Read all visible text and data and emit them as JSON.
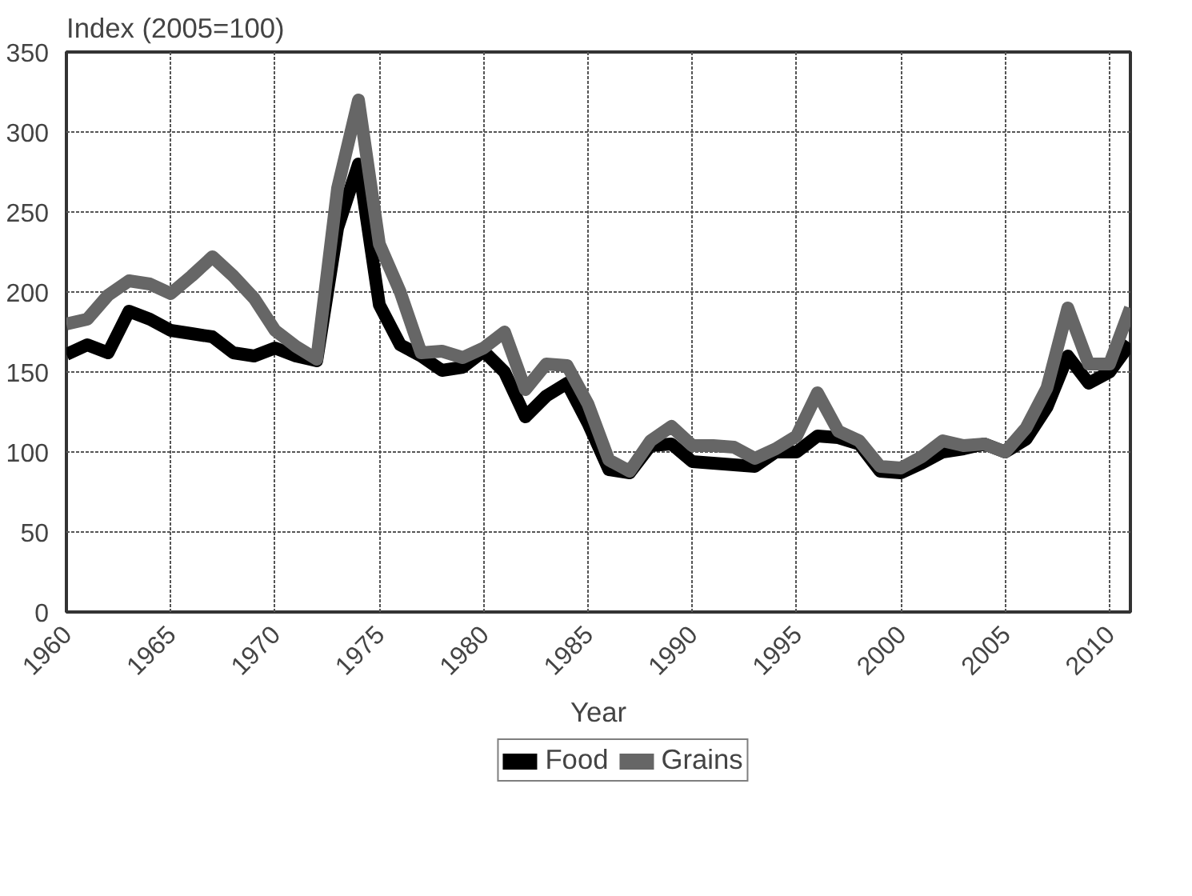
{
  "chart_data": {
    "type": "line",
    "xlabel": "Year",
    "ylabel": "Index (2005=100)",
    "x": [
      1960,
      1961,
      1962,
      1963,
      1964,
      1965,
      1966,
      1967,
      1968,
      1969,
      1970,
      1971,
      1972,
      1973,
      1974,
      1975,
      1976,
      1977,
      1978,
      1979,
      1980,
      1981,
      1982,
      1983,
      1984,
      1985,
      1986,
      1987,
      1988,
      1989,
      1990,
      1991,
      1992,
      1993,
      1994,
      1995,
      1996,
      1997,
      1998,
      1999,
      2000,
      2001,
      2002,
      2003,
      2004,
      2005,
      2006,
      2007,
      2008,
      2009,
      2010,
      2011
    ],
    "series": [
      {
        "name": "Food",
        "color": "#000000",
        "values": [
          161,
          167,
          162,
          188,
          183,
          176,
          174,
          172,
          162,
          160,
          165,
          160,
          157,
          240,
          280,
          192,
          167,
          160,
          151,
          153,
          163,
          150,
          122,
          135,
          143,
          118,
          89,
          87,
          104,
          105,
          94,
          93,
          92,
          91,
          100,
          100,
          110,
          109,
          105,
          88,
          87,
          93,
          100,
          102,
          105,
          100,
          108,
          128,
          160,
          143,
          150,
          168
        ]
      },
      {
        "name": "Grains",
        "color": "#666666",
        "values": [
          180,
          183,
          198,
          207,
          205,
          199,
          210,
          222,
          210,
          196,
          176,
          166,
          158,
          265,
          320,
          230,
          200,
          162,
          163,
          159,
          165,
          175,
          139,
          155,
          154,
          130,
          95,
          88,
          107,
          116,
          104,
          104,
          103,
          96,
          102,
          110,
          137,
          113,
          107,
          91,
          90,
          97,
          107,
          104,
          105,
          100,
          115,
          140,
          190,
          155,
          155,
          190
        ]
      }
    ],
    "xlim": [
      1960,
      2011
    ],
    "xticks": [
      1960,
      1965,
      1970,
      1975,
      1980,
      1985,
      1990,
      1995,
      2000,
      2005,
      2010
    ],
    "ylim": [
      0,
      350
    ],
    "yticks": [
      0,
      50,
      100,
      150,
      200,
      250,
      300,
      350
    ],
    "grid": true,
    "legend": "bottom",
    "line_style": "solid",
    "marker": "none"
  }
}
